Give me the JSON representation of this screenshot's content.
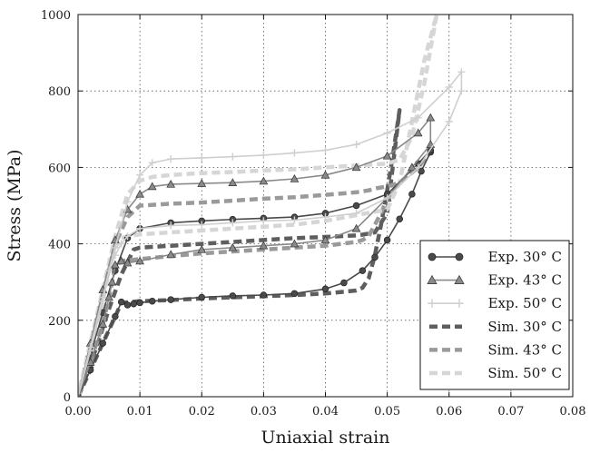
{
  "chart_data": {
    "type": "line",
    "xlabel": "Uniaxial strain",
    "ylabel": "Stress (MPa)",
    "xlim": [
      0,
      0.08
    ],
    "ylim": [
      0,
      1000
    ],
    "xticks": [
      "0.00",
      "0.01",
      "0.02",
      "0.03",
      "0.04",
      "0.05",
      "0.06",
      "0.07",
      "0.08"
    ],
    "yticks": [
      "0",
      "200",
      "400",
      "600",
      "800",
      "1000"
    ],
    "grid": true,
    "legend_position": "bottom-right",
    "series": [
      {
        "name": "Exp. 30° C",
        "style": "solid-circle",
        "color": "#4a4a4a",
        "x": [
          0,
          0.002,
          0.004,
          0.006,
          0.007,
          0.008,
          0.009,
          0.01,
          0.012,
          0.015,
          0.02,
          0.025,
          0.03,
          0.035,
          0.04,
          0.043,
          0.046,
          0.048,
          0.05,
          0.052,
          0.054,
          0.0555,
          0.057,
          0.057,
          0.055,
          0.05,
          0.045,
          0.04,
          0.035,
          0.03,
          0.025,
          0.02,
          0.015,
          0.01,
          0.008,
          0.006,
          0.004,
          0.002,
          0
        ],
        "y": [
          0,
          70,
          140,
          210,
          248,
          240,
          243,
          246,
          250,
          254,
          260,
          264,
          266,
          270,
          282,
          298,
          330,
          365,
          410,
          465,
          530,
          590,
          640,
          645,
          610,
          530,
          500,
          480,
          470,
          467,
          464,
          460,
          455,
          440,
          415,
          330,
          220,
          110,
          0
        ]
      },
      {
        "name": "Exp. 43° C",
        "style": "solid-triangle",
        "color": "#8a8a8a",
        "x": [
          0,
          0.002,
          0.004,
          0.005,
          0.0055,
          0.006,
          0.007,
          0.008,
          0.01,
          0.015,
          0.02,
          0.025,
          0.03,
          0.035,
          0.04,
          0.045,
          0.05,
          0.054,
          0.057,
          0.057,
          0.055,
          0.05,
          0.045,
          0.04,
          0.035,
          0.03,
          0.025,
          0.02,
          0.015,
          0.012,
          0.01,
          0.008,
          0.006,
          0.004,
          0.002,
          0
        ],
        "y": [
          0,
          90,
          190,
          260,
          300,
          345,
          355,
          350,
          355,
          372,
          385,
          390,
          395,
          400,
          410,
          440,
          520,
          600,
          660,
          730,
          690,
          630,
          600,
          580,
          570,
          564,
          560,
          558,
          556,
          550,
          530,
          490,
          410,
          280,
          140,
          0
        ]
      },
      {
        "name": "Exp. 50° C",
        "style": "solid-plus",
        "color": "#cfcfcf",
        "x": [
          0,
          0.002,
          0.004,
          0.005,
          0.006,
          0.007,
          0.008,
          0.01,
          0.015,
          0.02,
          0.025,
          0.03,
          0.035,
          0.04,
          0.045,
          0.05,
          0.055,
          0.06,
          0.062,
          0.062,
          0.06,
          0.055,
          0.05,
          0.045,
          0.04,
          0.035,
          0.03,
          0.025,
          0.02,
          0.015,
          0.012,
          0.01,
          0.008,
          0.006,
          0.004,
          0.002,
          0
        ],
        "y": [
          0,
          120,
          250,
          330,
          370,
          400,
          420,
          440,
          448,
          450,
          455,
          460,
          462,
          470,
          480,
          520,
          600,
          720,
          800,
          850,
          810,
          730,
          690,
          660,
          645,
          638,
          632,
          628,
          625,
          622,
          612,
          580,
          510,
          390,
          260,
          130,
          0
        ]
      },
      {
        "name": "Sim. 30° C",
        "style": "dashed",
        "color": "#5e5e5e",
        "x": [
          0,
          0.002,
          0.004,
          0.006,
          0.007,
          0.008,
          0.01,
          0.015,
          0.02,
          0.025,
          0.03,
          0.035,
          0.04,
          0.045,
          0.046,
          0.047,
          0.048,
          0.049,
          0.05,
          0.051,
          0.052,
          0.05,
          0.048,
          0.046,
          0.045,
          0.04,
          0.035,
          0.03,
          0.025,
          0.02,
          0.015,
          0.01,
          0.009,
          0.007,
          0.005,
          0.003,
          0
        ],
        "y": [
          0,
          70,
          140,
          210,
          245,
          247,
          250,
          253,
          257,
          260,
          263,
          266,
          270,
          278,
          285,
          310,
          370,
          450,
          540,
          640,
          750,
          480,
          430,
          424,
          422,
          418,
          415,
          410,
          405,
          400,
          395,
          390,
          385,
          320,
          230,
          130,
          0
        ]
      },
      {
        "name": "Sim. 43° C",
        "style": "dashed",
        "color": "#9a9a9a",
        "x": [
          0,
          0.002,
          0.004,
          0.005,
          0.006,
          0.007,
          0.01,
          0.015,
          0.02,
          0.025,
          0.03,
          0.035,
          0.04,
          0.045,
          0.046,
          0.047,
          0.048,
          0.049,
          0.05,
          0.052,
          0.055,
          0.057,
          0.055,
          0.052,
          0.05,
          0.048,
          0.047,
          0.045,
          0.04,
          0.035,
          0.03,
          0.025,
          0.02,
          0.015,
          0.01,
          0.008,
          0.006,
          0.004,
          0.002,
          0
        ],
        "y": [
          0,
          90,
          190,
          260,
          340,
          355,
          360,
          368,
          375,
          380,
          385,
          390,
          395,
          405,
          410,
          420,
          450,
          480,
          520,
          560,
          600,
          640,
          600,
          560,
          550,
          545,
          540,
          535,
          528,
          522,
          518,
          513,
          508,
          505,
          500,
          470,
          400,
          270,
          140,
          0
        ]
      },
      {
        "name": "Sim. 50° C",
        "style": "dashed",
        "color": "#d6d6d6",
        "x": [
          0,
          0.002,
          0.004,
          0.005,
          0.006,
          0.007,
          0.008,
          0.01,
          0.015,
          0.02,
          0.025,
          0.03,
          0.035,
          0.04,
          0.045,
          0.05,
          0.052,
          0.054,
          0.056,
          0.058,
          0.058,
          0.056,
          0.054,
          0.052,
          0.05,
          0.045,
          0.04,
          0.035,
          0.03,
          0.025,
          0.02,
          0.015,
          0.012,
          0.01,
          0.008,
          0.006,
          0.004,
          0.002,
          0
        ],
        "y": [
          0,
          120,
          250,
          330,
          390,
          415,
          420,
          425,
          430,
          435,
          440,
          445,
          450,
          460,
          475,
          490,
          560,
          720,
          880,
          1000,
          1000,
          820,
          680,
          620,
          610,
          605,
          600,
          595,
          592,
          588,
          585,
          580,
          575,
          565,
          530,
          420,
          280,
          140,
          0
        ]
      }
    ]
  }
}
